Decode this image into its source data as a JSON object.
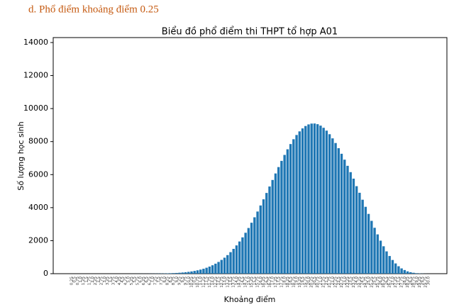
{
  "heading": "d.  Phổ điểm khoảng điểm 0.25",
  "chart_data": {
    "type": "bar",
    "title": "Biểu đồ phổ điểm thi THPT tổ hợp A01",
    "x_label": "Khoảng điểm",
    "y_label": "Số lượng học sinh",
    "color": "#1f77b4",
    "categories": [
      "0.25",
      "0.5",
      "0.75",
      "1.0",
      "1.25",
      "1.5",
      "1.75",
      "2.0",
      "2.25",
      "2.5",
      "2.75",
      "3.0",
      "3.25",
      "3.5",
      "3.75",
      "4.0",
      "4.25",
      "4.5",
      "4.75",
      "5.0",
      "5.25",
      "5.5",
      "5.75",
      "6.0",
      "6.25",
      "6.5",
      "6.75",
      "7.0",
      "7.25",
      "7.5",
      "7.75",
      "8.0",
      "8.25",
      "8.5",
      "8.75",
      "9.0",
      "9.25",
      "9.5",
      "9.75",
      "10.0",
      "10.25",
      "10.5",
      "10.75",
      "11.0",
      "11.25",
      "11.5",
      "11.75",
      "12.0",
      "12.25",
      "12.5",
      "12.75",
      "13.0",
      "13.25",
      "13.5",
      "13.75",
      "14.0",
      "14.25",
      "14.5",
      "14.75",
      "15.0",
      "15.25",
      "15.5",
      "15.75",
      "16.0",
      "16.25",
      "16.5",
      "16.75",
      "17.0",
      "17.25",
      "17.5",
      "17.75",
      "18.0",
      "18.25",
      "18.5",
      "18.75",
      "19.0",
      "19.25",
      "19.5",
      "19.75",
      "20.0",
      "20.25",
      "20.5",
      "20.75",
      "21.0",
      "21.25",
      "21.5",
      "21.75",
      "22.0",
      "22.25",
      "22.5",
      "22.75",
      "23.0",
      "23.25",
      "23.5",
      "23.75",
      "24.0",
      "24.25",
      "24.5",
      "24.75",
      "25.0",
      "25.25",
      "25.5",
      "25.75",
      "26.0",
      "26.25",
      "26.5",
      "26.75",
      "27.0",
      "27.25",
      "27.5",
      "27.75",
      "28.0",
      "28.25",
      "28.5",
      "28.75",
      "29.0",
      "29.25",
      "29.5",
      "29.75",
      "30.0"
    ],
    "values": [
      0,
      0,
      0,
      0,
      0,
      0,
      0,
      0,
      0,
      0,
      0,
      0,
      0,
      0,
      0,
      0,
      0,
      0,
      0,
      0,
      1,
      1,
      2,
      2,
      3,
      3,
      5,
      6,
      8,
      10,
      13,
      17,
      22,
      28,
      36,
      45,
      57,
      71,
      89,
      110,
      136,
      167,
      204,
      247,
      298,
      360,
      430,
      510,
      605,
      711,
      834,
      969,
      1125,
      1304,
      1503,
      1713,
      1950,
      2200,
      2478,
      2767,
      3086,
      3415,
      3764,
      4131,
      4505,
      4890,
      5280,
      5676,
      6070,
      6457,
      6832,
      7193,
      7534,
      7851,
      8144,
      8400,
      8619,
      8800,
      8944,
      9041,
      9091,
      9096,
      9055,
      8967,
      8836,
      8664,
      8447,
      8196,
      7914,
      7600,
      7263,
      6906,
      6533,
      6150,
      5756,
      5300,
      4900,
      4480,
      4050,
      3620,
      3200,
      2780,
      2380,
      2000,
      1660,
      1350,
      1070,
      830,
      620,
      450,
      320,
      220,
      140,
      90,
      55,
      30,
      15,
      8,
      3,
      1
    ],
    "ylim": [
      0,
      14300
    ],
    "yticks": [
      0,
      2000,
      4000,
      6000,
      8000,
      10000,
      12000,
      14000
    ]
  }
}
